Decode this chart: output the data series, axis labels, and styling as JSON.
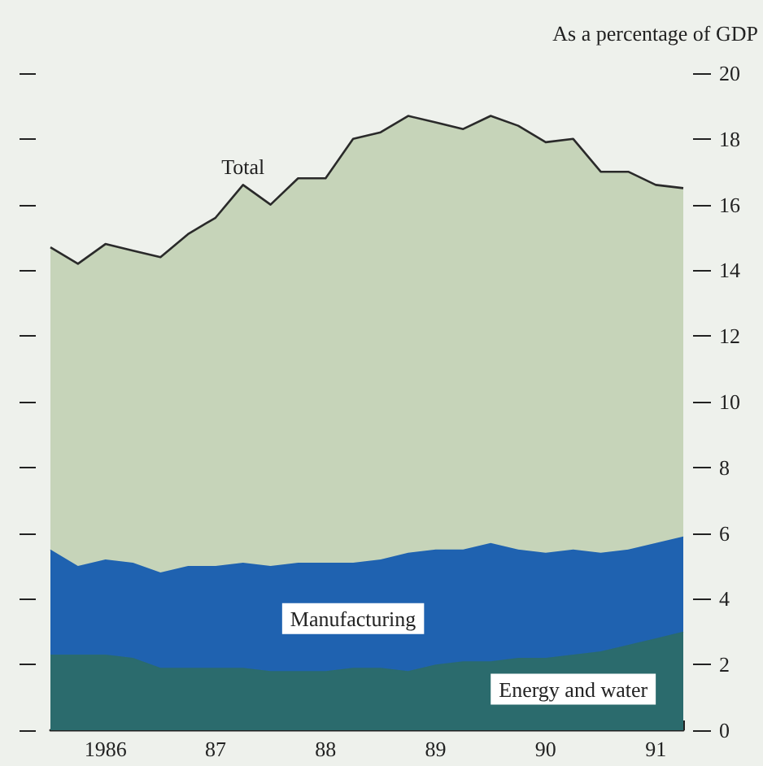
{
  "chart_data": {
    "type": "area",
    "stacked": true,
    "ylabel": "As a percentage of GDP",
    "categories": [
      null,
      null,
      "1986",
      null,
      null,
      null,
      "87",
      null,
      null,
      null,
      "88",
      null,
      null,
      null,
      "89",
      null,
      null,
      null,
      "90",
      null,
      null,
      null,
      "91",
      null
    ],
    "series": [
      {
        "name": "Energy and water",
        "color": "#2b6b6d",
        "values": [
          2.3,
          2.3,
          2.3,
          2.2,
          1.9,
          1.9,
          1.9,
          1.9,
          1.8,
          1.8,
          1.8,
          1.9,
          1.9,
          1.8,
          2.0,
          2.1,
          2.1,
          2.2,
          2.2,
          2.3,
          2.4,
          2.6,
          2.8,
          3.0
        ]
      },
      {
        "name": "Manufacturing",
        "color": "#1f62b0",
        "values": [
          3.2,
          2.7,
          2.9,
          2.9,
          2.9,
          3.1,
          3.1,
          3.2,
          3.2,
          3.3,
          3.3,
          3.2,
          3.3,
          3.6,
          3.5,
          3.4,
          3.6,
          3.3,
          3.2,
          3.2,
          3.0,
          2.9,
          2.9,
          2.9
        ]
      },
      {
        "color": "#c6d4b9",
        "values": [
          9.2,
          9.2,
          9.6,
          9.5,
          9.6,
          10.1,
          10.6,
          11.5,
          11.0,
          11.7,
          11.7,
          12.9,
          13.0,
          13.3,
          13.0,
          12.8,
          13.0,
          12.9,
          12.5,
          12.5,
          11.6,
          11.5,
          10.9,
          10.6
        ]
      }
    ],
    "annotations": [
      "Total"
    ],
    "ylim": [
      0,
      20
    ],
    "yticks": [
      0,
      2,
      4,
      6,
      8,
      10,
      12,
      14,
      16,
      18,
      20
    ],
    "grid": false,
    "legend": false,
    "marker": "none",
    "line_style": "solid"
  }
}
